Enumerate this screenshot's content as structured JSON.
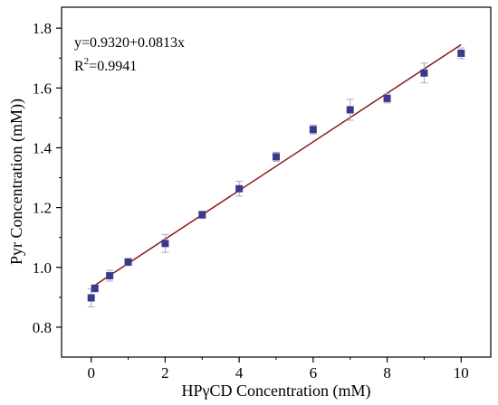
{
  "chart_data": {
    "type": "scatter",
    "xlabel": "HPγCD Concentration (mM)",
    "ylabel": "Pyr Concentration (mM))",
    "xlim": [
      -0.8,
      10.8
    ],
    "ylim": [
      0.7,
      1.87
    ],
    "x_ticks": [
      0,
      2,
      4,
      6,
      8,
      10
    ],
    "x_tick_labels": [
      "0",
      "2",
      "4",
      "6",
      "8",
      "10"
    ],
    "y_ticks": [
      0.8,
      1.0,
      1.2,
      1.4,
      1.6,
      1.8
    ],
    "y_tick_labels": [
      "0.8",
      "1.0",
      "1.2",
      "1.4",
      "1.6",
      "1.8"
    ],
    "grid": false,
    "series": [
      {
        "marker": "square",
        "color": "#3a3a8c",
        "points": [
          {
            "x": 0,
            "y": 0.898,
            "err": 0.03
          },
          {
            "x": 0.1,
            "y": 0.93,
            "err": 0.012
          },
          {
            "x": 0.5,
            "y": 0.972,
            "err": 0.018
          },
          {
            "x": 1,
            "y": 1.018,
            "err": 0.012
          },
          {
            "x": 2,
            "y": 1.08,
            "err": 0.03
          },
          {
            "x": 3,
            "y": 1.176,
            "err": 0.012
          },
          {
            "x": 4,
            "y": 1.263,
            "err": 0.025
          },
          {
            "x": 5,
            "y": 1.37,
            "err": 0.015
          },
          {
            "x": 6,
            "y": 1.461,
            "err": 0.015
          },
          {
            "x": 7,
            "y": 1.527,
            "err": 0.035
          },
          {
            "x": 8,
            "y": 1.565,
            "err": 0.015
          },
          {
            "x": 9,
            "y": 1.65,
            "err": 0.033
          },
          {
            "x": 10,
            "y": 1.716,
            "err": 0.018
          }
        ]
      }
    ],
    "fit": {
      "intercept": 0.932,
      "slope": 0.0813,
      "x_range": [
        0,
        10
      ],
      "color": "#8b1a1a"
    },
    "annotations": {
      "equation": "y=0.9320+0.0813x",
      "r2_label": "R",
      "r2_sup": "2",
      "r2_value": "=0.9941"
    },
    "colors": {
      "errorbar": "#a8a8c8",
      "axis": "#000000"
    }
  }
}
